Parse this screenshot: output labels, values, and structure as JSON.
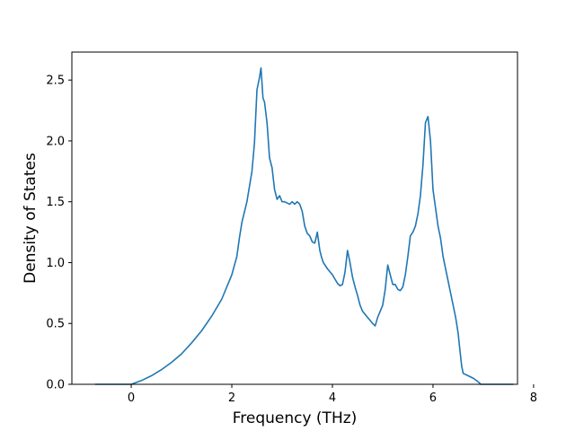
{
  "chart_data": {
    "type": "line",
    "title": "",
    "xlabel": "Frequency (THz)",
    "ylabel": "Density of States",
    "xlim": [
      -1.18,
      7.68
    ],
    "ylim": [
      0.0,
      2.73
    ],
    "xticks": [
      0,
      2,
      4,
      6,
      8
    ],
    "yticks": [
      0.0,
      0.5,
      1.0,
      1.5,
      2.0,
      2.5
    ],
    "xtick_labels": [
      "0",
      "2",
      "4",
      "6",
      "8"
    ],
    "ytick_labels": [
      "0.0",
      "0.5",
      "1.0",
      "1.5",
      "2.0",
      "2.5"
    ],
    "grid": false,
    "legend": "none",
    "line_color": "#1f77b4",
    "series": [
      {
        "x": [
          -0.72,
          -0.2,
          0.0,
          0.2,
          0.4,
          0.6,
          0.8,
          1.0,
          1.2,
          1.4,
          1.6,
          1.8,
          2.0,
          2.1,
          2.15,
          2.2,
          2.3,
          2.4,
          2.45,
          2.5,
          2.55,
          2.58,
          2.62,
          2.65,
          2.7,
          2.75,
          2.8,
          2.85,
          2.9,
          2.95,
          3.0,
          3.05,
          3.1,
          3.15,
          3.2,
          3.25,
          3.3,
          3.35,
          3.4,
          3.45,
          3.5,
          3.55,
          3.6,
          3.65,
          3.7,
          3.75,
          3.78,
          3.82,
          3.9,
          4.0,
          4.1,
          4.15,
          4.2,
          4.25,
          4.3,
          4.35,
          4.4,
          4.45,
          4.5,
          4.55,
          4.6,
          4.7,
          4.8,
          4.85,
          4.9,
          5.0,
          5.05,
          5.1,
          5.15,
          5.2,
          5.25,
          5.3,
          5.35,
          5.4,
          5.45,
          5.5,
          5.55,
          5.6,
          5.65,
          5.7,
          5.75,
          5.8,
          5.85,
          5.9,
          5.95,
          6.0,
          6.05,
          6.1,
          6.15,
          6.2,
          6.3,
          6.4,
          6.45,
          6.5,
          6.53,
          6.57,
          6.6,
          6.7,
          6.8,
          6.9,
          6.95,
          7.0,
          7.6
        ],
        "y": [
          0.0,
          0.0,
          0.0,
          0.03,
          0.07,
          0.12,
          0.18,
          0.25,
          0.34,
          0.44,
          0.56,
          0.7,
          0.9,
          1.05,
          1.2,
          1.33,
          1.5,
          1.75,
          1.98,
          2.42,
          2.52,
          2.6,
          2.35,
          2.32,
          2.15,
          1.86,
          1.78,
          1.6,
          1.52,
          1.55,
          1.5,
          1.5,
          1.49,
          1.48,
          1.5,
          1.48,
          1.5,
          1.48,
          1.42,
          1.3,
          1.24,
          1.22,
          1.17,
          1.16,
          1.25,
          1.1,
          1.05,
          1.0,
          0.95,
          0.9,
          0.83,
          0.81,
          0.82,
          0.92,
          1.1,
          1.0,
          0.88,
          0.8,
          0.73,
          0.65,
          0.6,
          0.55,
          0.5,
          0.48,
          0.55,
          0.65,
          0.78,
          0.98,
          0.9,
          0.82,
          0.82,
          0.78,
          0.77,
          0.8,
          0.9,
          1.05,
          1.22,
          1.25,
          1.3,
          1.4,
          1.55,
          1.8,
          2.15,
          2.2,
          2.0,
          1.6,
          1.45,
          1.3,
          1.2,
          1.05,
          0.85,
          0.65,
          0.55,
          0.42,
          0.3,
          0.15,
          0.09,
          0.07,
          0.05,
          0.02,
          0.0,
          0.0,
          0.0
        ]
      }
    ]
  }
}
